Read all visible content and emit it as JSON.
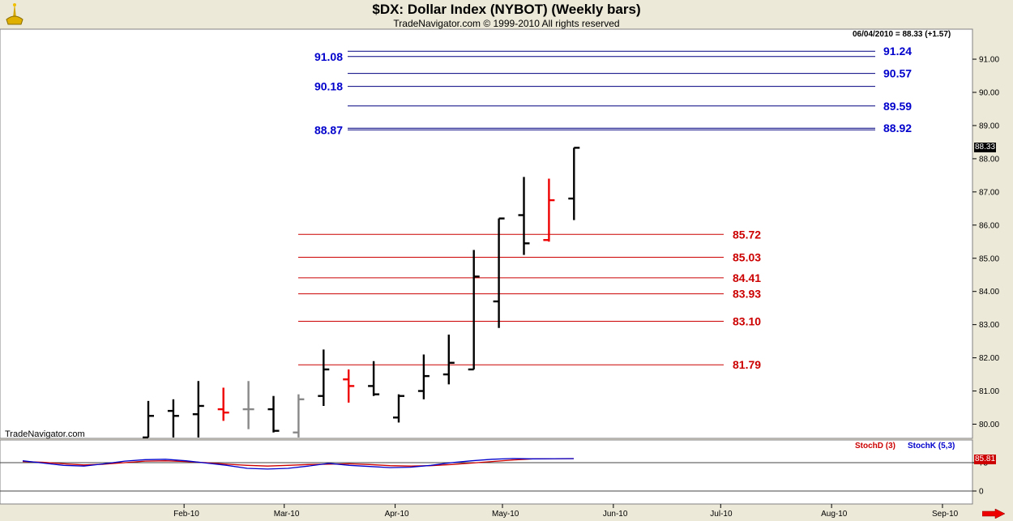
{
  "header": {
    "title": "$DX:  Dollar Index (NYBOT)  (Weekly bars)",
    "subtitle": "TradeNavigator.com © 1999-2010 All rights reserved",
    "readout": "06/04/2010 = 88.33 (+1.57)",
    "watermark": "TradeNavigator.com"
  },
  "indicator": {
    "stochd_label": "StochD (3)",
    "stochk_label": "StochK (5,3)",
    "last_value_badge": "85.81",
    "ticks": [
      "75",
      "0"
    ]
  },
  "price_badge": "88.33",
  "colors": {
    "background": "#ece9d8",
    "plot_bg": "#ffffff",
    "up_bar": "#000000",
    "down_bar": "#ee0000",
    "neutral_bar": "#888888",
    "projection_line": "#000080",
    "projection_label": "#0000cc",
    "retracement": "#cc0000"
  },
  "chart_data": {
    "type": "ohlc",
    "y_range": [
      79.6,
      91.8
    ],
    "y_ticks": [
      "80.00",
      "81.00",
      "82.00",
      "83.00",
      "84.00",
      "85.00",
      "86.00",
      "87.00",
      "88.00",
      "89.00",
      "90.00",
      "91.00"
    ],
    "x_ticks": [
      "Feb-10",
      "Mar-10",
      "Apr-10",
      "May-10",
      "Jun-10",
      "Jul-10",
      "Aug-10",
      "Sep-10"
    ],
    "bars": [
      {
        "week": "2010-01-22",
        "o": 79.6,
        "h": 80.7,
        "l": 79.6,
        "c": 80.25,
        "color": "up"
      },
      {
        "week": "2010-01-29",
        "o": 80.4,
        "h": 80.75,
        "l": 79.6,
        "c": 80.25,
        "color": "up"
      },
      {
        "week": "2010-02-05",
        "o": 80.3,
        "h": 81.3,
        "l": 79.6,
        "c": 80.55,
        "color": "up"
      },
      {
        "week": "2010-02-12",
        "o": 80.45,
        "h": 81.1,
        "l": 80.1,
        "c": 80.35,
        "color": "down"
      },
      {
        "week": "2010-02-19",
        "o": 80.45,
        "h": 81.3,
        "l": 79.85,
        "c": 80.45,
        "color": "neutral"
      },
      {
        "week": "2010-02-26",
        "o": 80.45,
        "h": 80.85,
        "l": 79.75,
        "c": 79.8,
        "color": "up"
      },
      {
        "week": "2010-03-05",
        "o": 79.75,
        "h": 80.9,
        "l": 79.6,
        "c": 80.75,
        "color": "neutral"
      },
      {
        "week": "2010-03-12",
        "o": 80.85,
        "h": 82.25,
        "l": 80.55,
        "c": 81.65,
        "color": "up"
      },
      {
        "week": "2010-03-19",
        "o": 81.35,
        "h": 81.65,
        "l": 80.65,
        "c": 81.15,
        "color": "down"
      },
      {
        "week": "2010-03-26",
        "o": 81.15,
        "h": 81.9,
        "l": 80.85,
        "c": 80.9,
        "color": "up"
      },
      {
        "week": "2010-04-02",
        "o": 80.2,
        "h": 80.9,
        "l": 80.05,
        "c": 80.85,
        "color": "up"
      },
      {
        "week": "2010-04-09",
        "o": 81.0,
        "h": 82.1,
        "l": 80.75,
        "c": 81.45,
        "color": "up"
      },
      {
        "week": "2010-04-16",
        "o": 81.5,
        "h": 82.7,
        "l": 81.2,
        "c": 81.85,
        "color": "up"
      },
      {
        "week": "2010-04-23",
        "o": 81.65,
        "h": 85.25,
        "l": 81.65,
        "c": 84.45,
        "color": "up"
      },
      {
        "week": "2010-04-30",
        "o": 83.7,
        "h": 86.2,
        "l": 82.9,
        "c": 86.2,
        "color": "up"
      },
      {
        "week": "2010-05-07",
        "o": 86.3,
        "h": 87.45,
        "l": 85.1,
        "c": 85.45,
        "color": "up"
      },
      {
        "week": "2010-05-14",
        "o": 85.55,
        "h": 87.4,
        "l": 85.5,
        "c": 86.75,
        "color": "down"
      },
      {
        "week": "2010-05-21",
        "o": 86.8,
        "h": 88.33,
        "l": 86.15,
        "c": 88.33,
        "color": "up"
      }
    ],
    "projection_levels": [
      {
        "value": 91.24,
        "label": "91.24",
        "side": "right"
      },
      {
        "value": 91.08,
        "label": "91.08",
        "side": "left"
      },
      {
        "value": 90.57,
        "label": "90.57",
        "side": "right"
      },
      {
        "value": 90.18,
        "label": "90.18",
        "side": "left"
      },
      {
        "value": 89.59,
        "label": "89.59",
        "side": "right"
      },
      {
        "value": 88.92,
        "label": "88.92",
        "side": "right"
      },
      {
        "value": 88.87,
        "label": "88.87",
        "side": "left"
      }
    ],
    "retracement_levels": [
      {
        "value": 85.72,
        "label": "85.72"
      },
      {
        "value": 85.03,
        "label": "85.03"
      },
      {
        "value": 84.41,
        "label": "84.41"
      },
      {
        "value": 83.93,
        "label": "83.93"
      },
      {
        "value": 83.1,
        "label": "83.10"
      },
      {
        "value": 81.79,
        "label": "81.79"
      }
    ],
    "stoch_d": [
      78,
      76,
      72,
      69,
      71,
      75,
      79,
      80,
      78,
      75,
      71,
      68,
      66,
      68,
      70,
      71,
      72,
      70,
      67,
      66,
      67,
      70,
      74,
      78,
      82,
      85,
      85.5,
      85.81
    ],
    "stoch_k": [
      80,
      74,
      68,
      66,
      72,
      79,
      83,
      84,
      80,
      74,
      68,
      60,
      58,
      60,
      66,
      73,
      68,
      65,
      62,
      63,
      68,
      75,
      80,
      84,
      86,
      85,
      85.5,
      85.81
    ],
    "stoch_range": [
      0,
      100
    ]
  }
}
